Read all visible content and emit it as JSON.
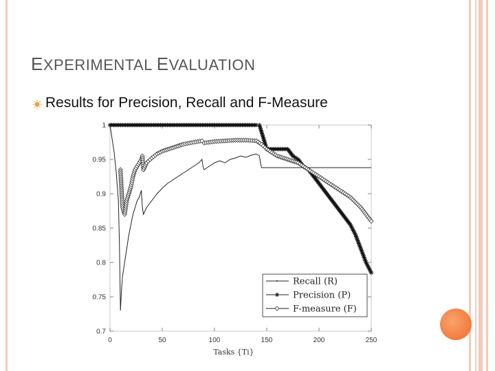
{
  "slide": {
    "title_first_cap": "E",
    "title_first_rest": "XPERIMENTAL ",
    "title_second_cap": "E",
    "title_second_rest": "VALUATION",
    "bullet_text": "Results for Precision, Recall and F-Measure"
  },
  "colors": {
    "frame": "#f4c9b8",
    "accent_circle": "#f06b2e"
  },
  "icons": {
    "bullet": "sun-bullet-icon"
  },
  "chart_data": {
    "type": "line",
    "xlabel": "Tasks {Ti}",
    "ylabel": "",
    "xlim": [
      0,
      250
    ],
    "ylim": [
      0.7,
      1.0
    ],
    "xticks": [
      0,
      50,
      100,
      150,
      200,
      250
    ],
    "yticks": [
      0.7,
      0.75,
      0.8,
      0.85,
      0.9,
      0.95,
      1
    ],
    "ytick_labels": [
      "0.7",
      "0.75",
      "0.8",
      "0.85",
      "0.9",
      "0.95",
      "1"
    ],
    "grid": false,
    "legend_position": "bottom-right",
    "series": [
      {
        "name": "Recall (R)",
        "marker": "point",
        "x": [
          0,
          2,
          4,
          6,
          8,
          9,
          10,
          11,
          12,
          14,
          16,
          18,
          20,
          22,
          24,
          26,
          28,
          30,
          31,
          32,
          35,
          40,
          45,
          50,
          55,
          60,
          65,
          70,
          75,
          80,
          85,
          88,
          89,
          90,
          95,
          100,
          105,
          110,
          115,
          120,
          125,
          130,
          135,
          140,
          143,
          144,
          145,
          150,
          160,
          170,
          180,
          190,
          200,
          210,
          220,
          230,
          240,
          250
        ],
        "y": [
          1.0,
          0.98,
          0.96,
          0.93,
          0.89,
          0.83,
          0.73,
          0.76,
          0.78,
          0.8,
          0.82,
          0.84,
          0.855,
          0.87,
          0.88,
          0.89,
          0.895,
          0.905,
          0.88,
          0.87,
          0.88,
          0.89,
          0.9,
          0.908,
          0.915,
          0.92,
          0.925,
          0.93,
          0.935,
          0.94,
          0.945,
          0.95,
          0.94,
          0.935,
          0.94,
          0.945,
          0.948,
          0.945,
          0.95,
          0.952,
          0.955,
          0.953,
          0.956,
          0.958,
          0.955,
          0.945,
          0.938,
          0.938,
          0.938,
          0.938,
          0.938,
          0.938,
          0.938,
          0.938,
          0.938,
          0.938,
          0.938,
          0.938
        ]
      },
      {
        "name": "Precision (P)",
        "marker": "star",
        "x": [
          0,
          5,
          10,
          20,
          40,
          60,
          80,
          100,
          120,
          140,
          143,
          145,
          147,
          150,
          155,
          160,
          165,
          170,
          175,
          180,
          185,
          190,
          195,
          200,
          205,
          210,
          215,
          220,
          225,
          230,
          235,
          240,
          245,
          250
        ],
        "y": [
          1.0,
          1.0,
          1.0,
          1.0,
          1.0,
          1.0,
          1.0,
          1.0,
          1.0,
          1.0,
          1.0,
          0.99,
          0.98,
          0.965,
          0.965,
          0.965,
          0.965,
          0.965,
          0.955,
          0.95,
          0.94,
          0.935,
          0.925,
          0.915,
          0.905,
          0.895,
          0.885,
          0.875,
          0.865,
          0.855,
          0.84,
          0.82,
          0.8,
          0.785
        ]
      },
      {
        "name": "F-measure (F)",
        "marker": "diamond",
        "x": [
          10,
          12,
          14,
          16,
          18,
          20,
          22,
          24,
          26,
          28,
          30,
          31,
          32,
          35,
          40,
          45,
          50,
          60,
          70,
          80,
          88,
          90,
          100,
          110,
          120,
          130,
          140,
          145,
          150,
          160,
          170,
          180,
          190,
          200,
          210,
          220,
          230,
          240,
          250
        ],
        "y": [
          0.935,
          0.88,
          0.87,
          0.89,
          0.9,
          0.91,
          0.925,
          0.935,
          0.94,
          0.945,
          0.95,
          0.955,
          0.935,
          0.945,
          0.952,
          0.958,
          0.962,
          0.967,
          0.972,
          0.975,
          0.977,
          0.974,
          0.976,
          0.977,
          0.978,
          0.978,
          0.977,
          0.972,
          0.965,
          0.955,
          0.95,
          0.945,
          0.935,
          0.925,
          0.915,
          0.905,
          0.895,
          0.88,
          0.86
        ]
      }
    ]
  }
}
